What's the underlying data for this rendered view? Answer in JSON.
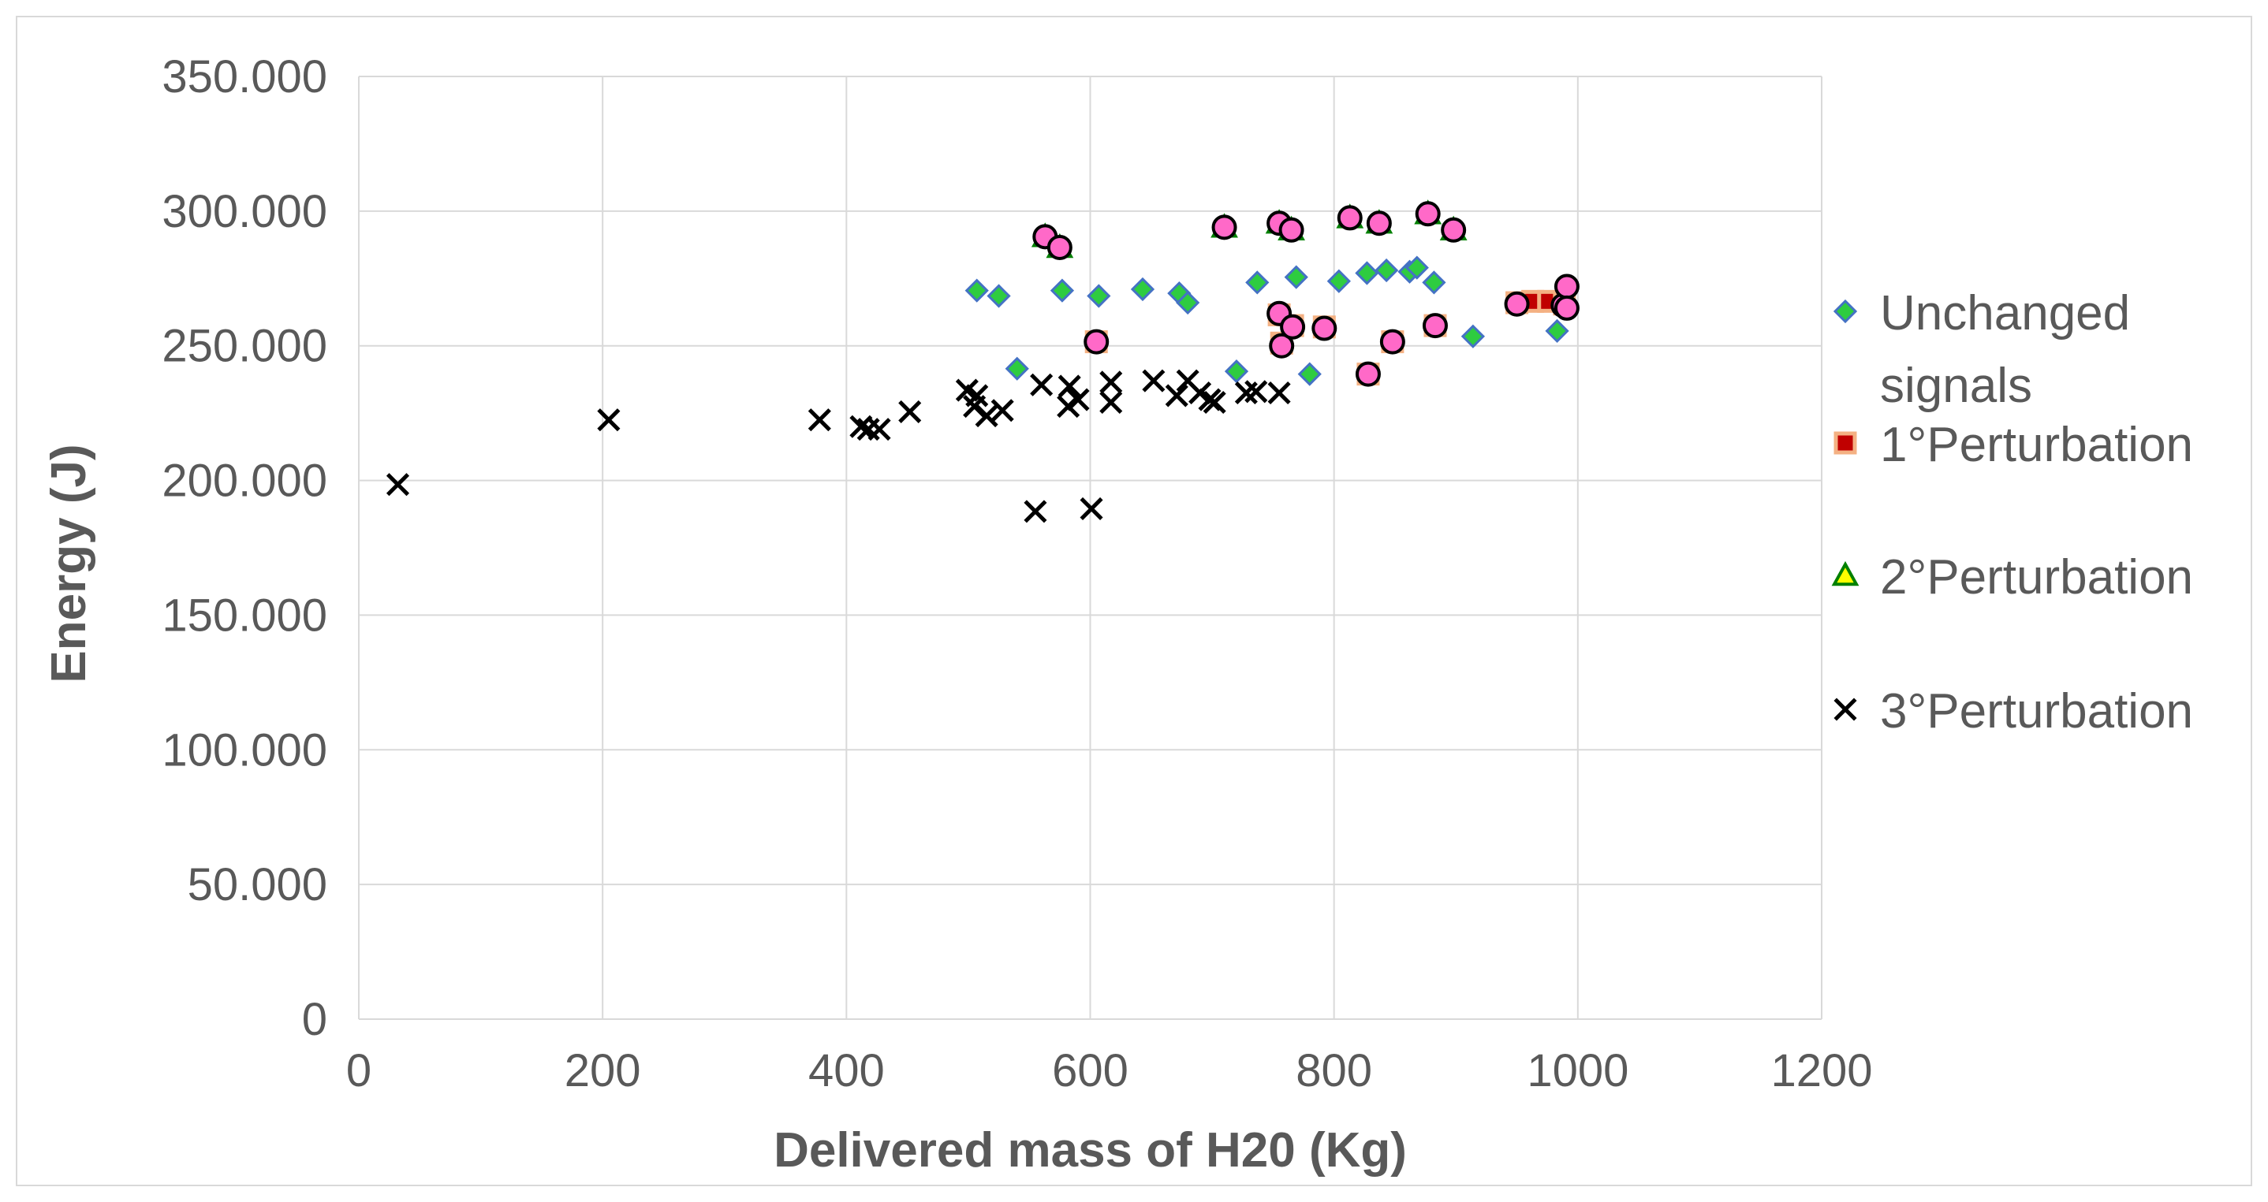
{
  "chart_data": {
    "type": "scatter",
    "title": "",
    "xlabel": "Delivered mass of H20 (Kg)",
    "ylabel": "Energy (J)",
    "xlim": [
      0,
      1200
    ],
    "ylim": [
      0,
      350000
    ],
    "x_ticks": [
      0,
      200,
      400,
      600,
      800,
      1000,
      1200
    ],
    "x_tick_labels": [
      "0",
      "200",
      "400",
      "600",
      "800",
      "1000",
      "1200"
    ],
    "y_ticks": [
      0,
      50000,
      100000,
      150000,
      200000,
      250000,
      300000,
      350000
    ],
    "y_tick_labels": [
      "0",
      "50.000",
      "100.000",
      "150.000",
      "200.000",
      "250.000",
      "300.000",
      "350.000"
    ],
    "grid": true,
    "legend_position": "right",
    "series": [
      {
        "name": "Unchanged signals",
        "legend_lines": [
          "Unchanged",
          "signals"
        ],
        "marker": "diamond",
        "fill": "#2ecc40",
        "stroke": "#4472c4",
        "points": [
          [
            507,
            270500
          ],
          [
            525,
            268500
          ],
          [
            540,
            241500
          ],
          [
            577,
            270500
          ],
          [
            607,
            268500
          ],
          [
            643,
            271000
          ],
          [
            673,
            269500
          ],
          [
            680,
            266000
          ],
          [
            720,
            240500
          ],
          [
            737,
            273500
          ],
          [
            769,
            275500
          ],
          [
            780,
            239500
          ],
          [
            804,
            274000
          ],
          [
            827,
            277000
          ],
          [
            843,
            278000
          ],
          [
            862,
            277500
          ],
          [
            868,
            279000
          ],
          [
            882,
            273500
          ],
          [
            914,
            253500
          ],
          [
            983,
            255500
          ]
        ]
      },
      {
        "name": "1°Perturbation",
        "marker": "square",
        "fill": "#c00000",
        "stroke": "#f4b183",
        "points": [
          [
            605,
            251500
          ],
          [
            755,
            261500
          ],
          [
            757,
            251000
          ],
          [
            766,
            257500
          ],
          [
            792,
            257000
          ],
          [
            828,
            239500
          ],
          [
            848,
            251500
          ],
          [
            883,
            257500
          ],
          [
            950,
            266000
          ],
          [
            963,
            266500
          ],
          [
            976,
            266500
          ],
          [
            989,
            265500
          ]
        ]
      },
      {
        "name": "2°Perturbation",
        "marker": "triangle",
        "fill": "#ffff00",
        "stroke": "#008000",
        "points": [
          [
            563,
            290500
          ],
          [
            575,
            286500
          ],
          [
            710,
            294000
          ],
          [
            755,
            295500
          ],
          [
            765,
            293000
          ],
          [
            813,
            297500
          ],
          [
            837,
            295500
          ],
          [
            877,
            299000
          ],
          [
            898,
            293000
          ]
        ]
      },
      {
        "name": "3°Perturbation",
        "marker": "x",
        "fill": "#000000",
        "stroke": "#000000",
        "points": [
          [
            32,
            198500
          ],
          [
            205,
            222500
          ],
          [
            378,
            222500
          ],
          [
            412,
            220000
          ],
          [
            418,
            219000
          ],
          [
            427,
            219000
          ],
          [
            452,
            225500
          ],
          [
            499,
            233500
          ],
          [
            505,
            227500
          ],
          [
            507,
            231500
          ],
          [
            515,
            224000
          ],
          [
            528,
            226000
          ],
          [
            555,
            188500
          ],
          [
            560,
            235500
          ],
          [
            582,
            227500
          ],
          [
            583,
            235000
          ],
          [
            590,
            230000
          ],
          [
            601,
            189500
          ],
          [
            617,
            229000
          ],
          [
            617,
            236500
          ],
          [
            652,
            237000
          ],
          [
            671,
            231500
          ],
          [
            680,
            237000
          ],
          [
            690,
            232500
          ],
          [
            698,
            230000
          ],
          [
            702,
            229000
          ],
          [
            728,
            232500
          ],
          [
            736,
            233000
          ],
          [
            755,
            232500
          ]
        ]
      },
      {
        "name": "",
        "marker": "circle",
        "fill": "#ff69c8",
        "stroke": "#000000",
        "in_legend": false,
        "points": [
          [
            563,
            290500
          ],
          [
            575,
            286500
          ],
          [
            605,
            251500
          ],
          [
            710,
            294000
          ],
          [
            755,
            295500
          ],
          [
            755,
            262000
          ],
          [
            757,
            250000
          ],
          [
            765,
            293000
          ],
          [
            766,
            257000
          ],
          [
            792,
            256500
          ],
          [
            813,
            297500
          ],
          [
            828,
            239500
          ],
          [
            837,
            295500
          ],
          [
            848,
            251500
          ],
          [
            877,
            299000
          ],
          [
            883,
            257500
          ],
          [
            898,
            293000
          ],
          [
            950,
            265500
          ],
          [
            988,
            265000
          ],
          [
            991,
            272000
          ],
          [
            991,
            264000
          ]
        ]
      }
    ]
  }
}
